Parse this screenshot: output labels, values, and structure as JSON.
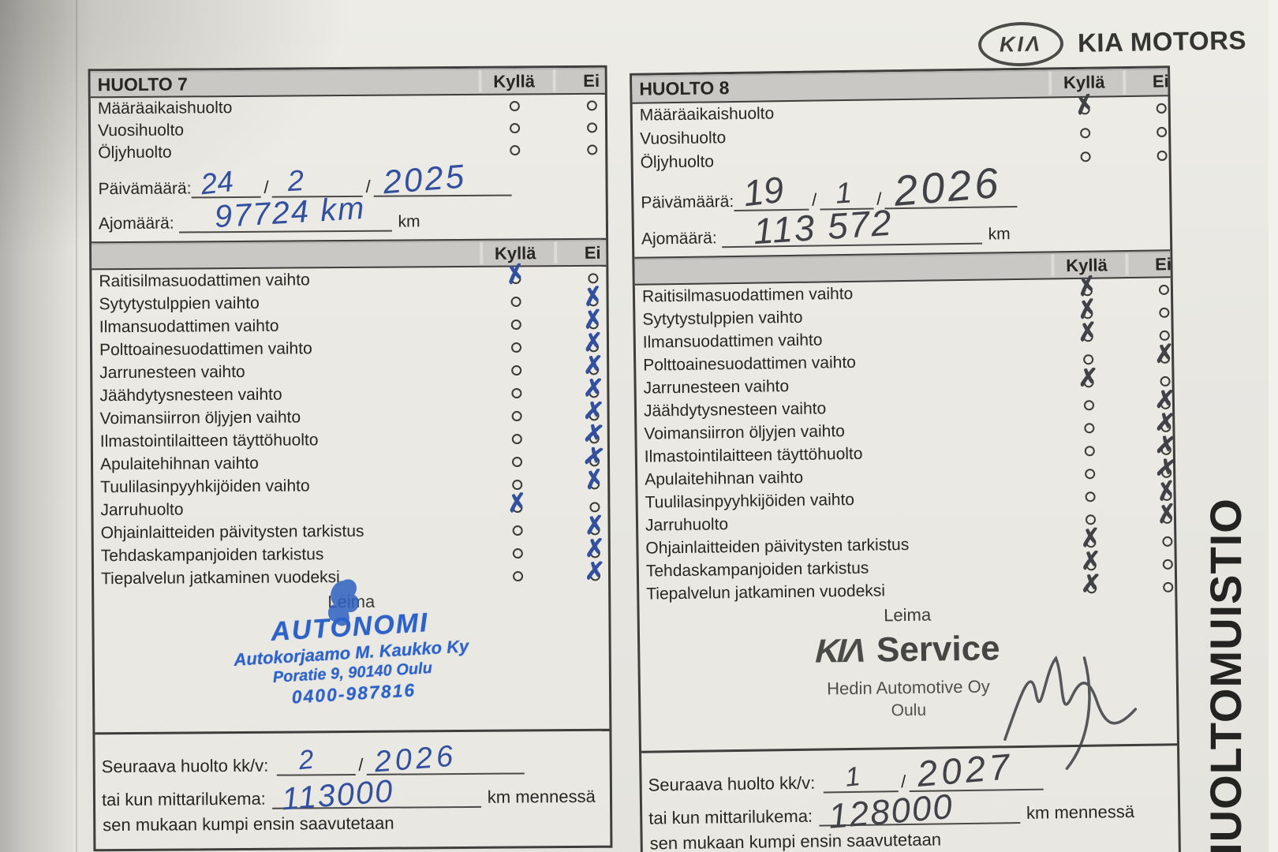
{
  "brand": {
    "oval_text": "KIΛ",
    "name": "KIA MOTORS"
  },
  "side_label": "HUOLTOMUISTIO",
  "labels": {
    "kylla": "Kyllä",
    "ei": "Ei",
    "paivamaara": "Päivämäärä:",
    "ajomaara": "Ajomäärä:",
    "km": "km",
    "leima": "Leima",
    "next_service": "Seuraava huolto kk/v:",
    "odometer": "tai kun mittarilukema:",
    "km_by": "km mennessä",
    "whichever": "sen mukaan kumpi ensin saavutetaan"
  },
  "top_items": [
    "Määräaikaishuolto",
    "Vuosihuolto",
    "Öljyhuolto"
  ],
  "checklist_items": [
    "Raitisilmasuodattimen vaihto",
    "Sytytystulppien vaihto",
    "Ilmansuodattimen vaihto",
    "Polttoainesuodattimen vaihto",
    "Jarrunesteen vaihto",
    "Jäähdytysnesteen vaihto",
    "Voimansiirron öljyjen vaihto",
    "Ilmastointilaitteen täyttöhuolto",
    "Apulaitehihnan vaihto",
    "Tuulilasinpyyhkijöiden vaihto",
    "Jarruhuolto",
    "Ohjainlaitteiden päivitysten tarkistus",
    "Tehdaskampanjoiden tarkistus",
    "Tiepalvelun jatkaminen vuodeksi"
  ],
  "huolto7": {
    "title": "HUOLTO 7",
    "top_checks": [
      "",
      "",
      ""
    ],
    "date": {
      "day": "24",
      "month": "2",
      "year": "2025"
    },
    "mileage": "97724 km",
    "checks": [
      "K",
      "E",
      "E",
      "E",
      "E",
      "E",
      "E",
      "E",
      "E",
      "E",
      "K",
      "E",
      "E",
      "E"
    ],
    "stamp": {
      "line1": "AUTONOMI",
      "line2": "Autokorjaamo M. Kaukko Ky",
      "line3": "Poratie 9, 90140 Oulu",
      "line4": "0400-987816"
    },
    "next": {
      "month": "2",
      "year": "2026",
      "odometer": "113000"
    }
  },
  "huolto8": {
    "title": "HUOLTO 8",
    "top_checks": [
      "K",
      "",
      ""
    ],
    "date": {
      "day": "19",
      "month": "1",
      "year": "2026"
    },
    "mileage": "113 572",
    "checks": [
      "K",
      "K",
      "K",
      "E",
      "K",
      "E",
      "E",
      "E",
      "E",
      "E",
      "E",
      "K",
      "K",
      "K"
    ],
    "stamp": {
      "logo": "KIΛ",
      "service": "Service",
      "company": "Hedin Automotive Oy",
      "city": "Oulu"
    },
    "next": {
      "month": "1",
      "year": "2027",
      "odometer": "128000"
    }
  }
}
